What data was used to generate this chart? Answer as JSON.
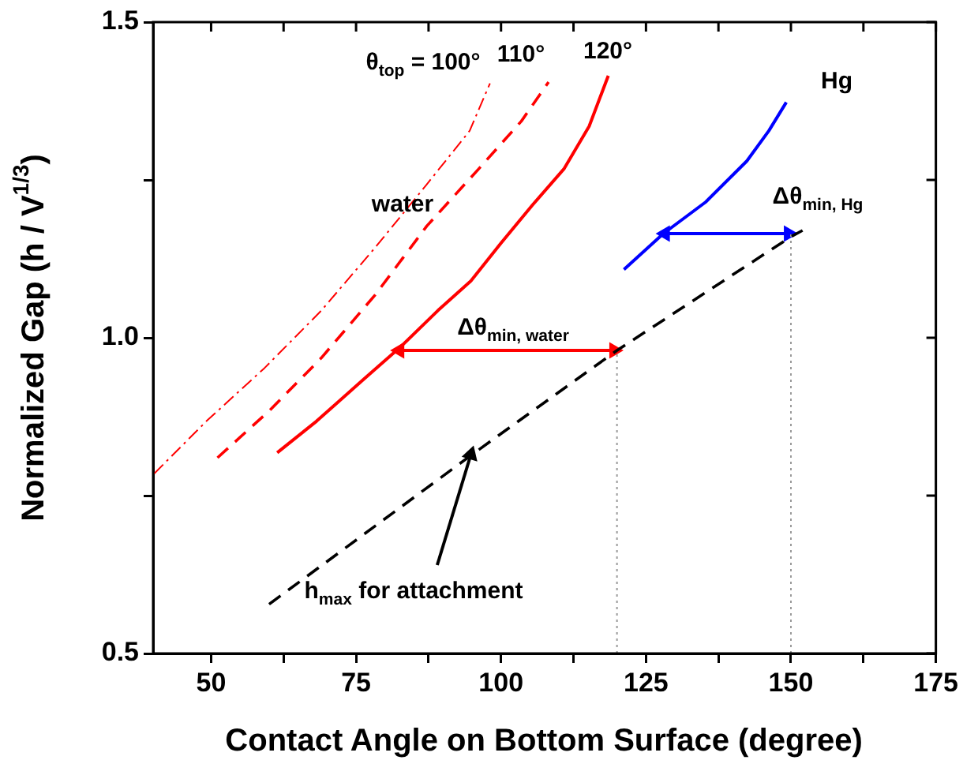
{
  "chart_data": {
    "type": "line",
    "xlabel": "Contact Angle on Bottom Surface (degree)",
    "ylabel": "Normalized Gap (h / V$^{1/3}$)",
    "xlim": [
      40,
      175
    ],
    "ylim": [
      0.5,
      1.5
    ],
    "xticks": [
      50,
      {
        "value": 62.5,
        "label": null
      },
      75,
      {
        "value": 87.5,
        "label": null
      },
      100,
      {
        "value": 112.5,
        "label": null
      },
      125,
      {
        "value": 137.5,
        "label": null
      },
      150,
      {
        "value": 162.5,
        "label": null
      },
      175
    ],
    "yticks": [
      {
        "value": 0.5,
        "label": "0.5"
      },
      {
        "value": 0.75,
        "label": null
      },
      {
        "value": 1.0,
        "label": "1.0"
      },
      {
        "value": 1.25,
        "label": null
      },
      {
        "value": 1.5,
        "label": "1.5"
      }
    ],
    "grid": false,
    "legend": false,
    "series": [
      {
        "color": "#ff0000",
        "line_style": "dashdot",
        "x": [
          40.2,
          49.2,
          59.2,
          69,
          78.3,
          87.2,
          94.6,
          98.1
        ],
        "values": [
          0.785,
          0.868,
          0.952,
          1.043,
          1.143,
          1.243,
          1.328,
          1.403
        ]
      },
      {
        "color": "#ff0000",
        "line_style": "dashed",
        "x": [
          51.1,
          60.1,
          69,
          78.3,
          87.2,
          96.2,
          103.5,
          108.2
        ],
        "values": [
          0.81,
          0.885,
          0.968,
          1.068,
          1.177,
          1.268,
          1.343,
          1.405
        ]
      },
      {
        "color": "#ff0000",
        "line_style": "solid",
        "x": [
          61.4,
          68.2,
          76.4,
          82.6,
          89.1,
          94.8,
          100,
          105.4,
          110.9,
          115.2,
          118.5
        ],
        "values": [
          0.818,
          0.868,
          0.935,
          0.985,
          1.043,
          1.09,
          1.15,
          1.21,
          1.268,
          1.335,
          1.415
        ]
      },
      {
        "color": "#0000ff",
        "line_style": "solid",
        "x": [
          121.2,
          128,
          135.3,
          142.4,
          146.2,
          149.2
        ],
        "values": [
          1.108,
          1.165,
          1.215,
          1.28,
          1.328,
          1.373
        ]
      },
      {
        "color": "#000000",
        "line_style": "dashed",
        "x": [
          60,
          95,
          120,
          150,
          152
        ],
        "values": [
          0.578,
          0.815,
          0.98,
          1.16,
          1.17
        ]
      },
      {
        "color": "#999999",
        "line_style": "dotted",
        "x": [
          120,
          120
        ],
        "values": [
          0.5,
          0.98
        ]
      },
      {
        "color": "#999999",
        "line_style": "dotted",
        "x": [
          150,
          150
        ],
        "values": [
          0.5,
          1.165
        ]
      },
      {
        "color": "#ff0000",
        "line_style": "solid",
        "marker": "triangle",
        "x": [
          82.5,
          119.5
        ],
        "values": [
          0.98,
          0.98
        ]
      },
      {
        "color": "#0000ff",
        "line_style": "solid",
        "marker": "triangle",
        "x": [
          128.3,
          149.6
        ],
        "values": [
          1.165,
          1.165
        ]
      },
      {
        "color": "#000000",
        "line_style": "solid",
        "marker": "triangle",
        "x": [
          89,
          94.8
        ],
        "values": [
          0.64,
          0.815
        ]
      }
    ],
    "annotations": [
      "θ$_{top}$ = 100°",
      "110°",
      "120°",
      "water",
      "Hg",
      "Δθ$_{min, water}$",
      "Δθ$_{min, Hg}$",
      "h$_{max}$ for attachment"
    ]
  }
}
